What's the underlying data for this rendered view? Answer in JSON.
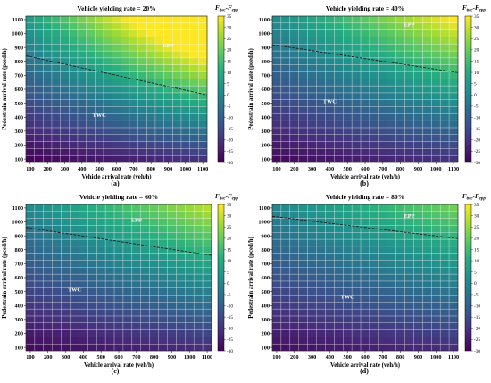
{
  "chart_data": [
    {
      "type": "heatmap",
      "panel_label": "(a)",
      "title": "Vehicle yielding rate = 20%",
      "xlabel": "Vehicle arrival rate (veh/h)",
      "ylabel": "Pedestrain arrival rate (pced/h)",
      "x_ticks": [
        100,
        200,
        300,
        400,
        500,
        600,
        700,
        800,
        900,
        1000,
        1100
      ],
      "y_ticks": [
        100,
        200,
        300,
        400,
        500,
        600,
        700,
        800,
        900,
        1000,
        1100
      ],
      "x_range": [
        100,
        1100
      ],
      "y_range": [
        100,
        1100
      ],
      "z_range": [
        -30,
        35
      ],
      "colorbar_ticks": [
        35,
        30,
        25,
        20,
        15,
        10,
        5,
        0,
        -5,
        -10,
        -15,
        -20,
        -25,
        -30
      ],
      "colorbar_title": "F",
      "colorbar_title_sub1": "twc",
      "colorbar_title_mid": "-F",
      "colorbar_title_sub2": "epp",
      "boundary_line": {
        "style": "dashed",
        "points": [
          [
            100,
            840
          ],
          [
            1100,
            560
          ]
        ]
      },
      "regions": [
        {
          "label": "EPP",
          "x": 900,
          "y": 900
        },
        {
          "label": "TWC",
          "x": 500,
          "y": 400
        }
      ],
      "value_surface": {
        "base": -29,
        "dx": 0.009,
        "dy": 0.036,
        "dxy": 4e-05
      }
    },
    {
      "type": "heatmap",
      "panel_label": "(b)",
      "title": "Vehicle yielding rate = 40%",
      "xlabel": "Vehicle arrival rate (veh/h)",
      "ylabel": "Pedestrain arrival rate (pced/h)",
      "x_ticks": [
        100,
        200,
        300,
        400,
        500,
        600,
        700,
        800,
        900,
        1000,
        1100
      ],
      "y_ticks": [
        100,
        200,
        300,
        400,
        500,
        600,
        700,
        800,
        900,
        1000,
        1100
      ],
      "x_range": [
        100,
        1100
      ],
      "y_range": [
        100,
        1100
      ],
      "z_range": [
        -30,
        35
      ],
      "colorbar_ticks": [
        35,
        30,
        25,
        20,
        15,
        10,
        5,
        0,
        -5,
        -10,
        -15,
        -20,
        -25,
        -30
      ],
      "colorbar_title": "F",
      "colorbar_title_sub1": "twc",
      "colorbar_title_mid": "-F",
      "colorbar_title_sub2": "epp",
      "boundary_line": {
        "style": "dashed",
        "points": [
          [
            100,
            920
          ],
          [
            1100,
            720
          ]
        ]
      },
      "regions": [
        {
          "label": "EPP",
          "x": 850,
          "y": 1050
        },
        {
          "label": "TWC",
          "x": 400,
          "y": 500
        }
      ],
      "value_surface": {
        "base": -28,
        "dx": 0.008,
        "dy": 0.03,
        "dxy": 2.5e-05
      }
    },
    {
      "type": "heatmap",
      "panel_label": "(c)",
      "title": "Vehicle yielding rate = 60%",
      "xlabel": "Vehicle arrival rate (veh/h)",
      "ylabel": "Pedestrain arrival rate (pced/h)",
      "x_ticks": [
        100,
        200,
        300,
        400,
        500,
        600,
        700,
        800,
        900,
        1000,
        1100
      ],
      "y_ticks": [
        100,
        200,
        300,
        400,
        500,
        600,
        700,
        800,
        900,
        1000,
        1100
      ],
      "x_range": [
        100,
        1100
      ],
      "y_range": [
        100,
        1100
      ],
      "z_range": [
        -30,
        35
      ],
      "colorbar_ticks": [
        35,
        30,
        25,
        20,
        15,
        10,
        5,
        0,
        -5,
        -10,
        -15,
        -20,
        -25,
        -30
      ],
      "colorbar_title": "F",
      "colorbar_title_sub1": "twc",
      "colorbar_title_mid": "-F",
      "colorbar_title_sub2": "epp",
      "boundary_line": {
        "style": "dashed",
        "points": [
          [
            100,
            960
          ],
          [
            1100,
            760
          ]
        ]
      },
      "regions": [
        {
          "label": "EPP",
          "x": 700,
          "y": 1000
        },
        {
          "label": "TWC",
          "x": 350,
          "y": 500
        }
      ],
      "value_surface": {
        "base": -28,
        "dx": 0.007,
        "dy": 0.029,
        "dxy": 2e-05
      }
    },
    {
      "type": "heatmap",
      "panel_label": "(d)",
      "title": "Vehicle yielding rate = 80%",
      "xlabel": "Vehicle arrival rate (veh/h)",
      "ylabel": "Pedestrain arrival rate (pced/h)",
      "x_ticks": [
        100,
        200,
        300,
        400,
        500,
        600,
        700,
        800,
        900,
        1000,
        1100
      ],
      "y_ticks": [
        100,
        200,
        300,
        400,
        500,
        600,
        700,
        800,
        900,
        1000,
        1100
      ],
      "x_range": [
        100,
        1100
      ],
      "y_range": [
        100,
        1100
      ],
      "z_range": [
        -30,
        35
      ],
      "colorbar_ticks": [
        35,
        30,
        25,
        20,
        15,
        10,
        5,
        0,
        -5,
        -10,
        -15,
        -20,
        -25,
        -30
      ],
      "colorbar_title": "F",
      "colorbar_title_sub1": "twc",
      "colorbar_title_mid": "-F",
      "colorbar_title_sub2": "epp",
      "boundary_line": {
        "style": "dashed",
        "points": [
          [
            100,
            1040
          ],
          [
            1100,
            880
          ]
        ]
      },
      "regions": [
        {
          "label": "EPP",
          "x": 850,
          "y": 1030
        },
        {
          "label": "TWC",
          "x": 500,
          "y": 450
        }
      ],
      "value_surface": {
        "base": -27,
        "dx": 0.006,
        "dy": 0.027,
        "dxy": 1.5e-05
      }
    }
  ]
}
